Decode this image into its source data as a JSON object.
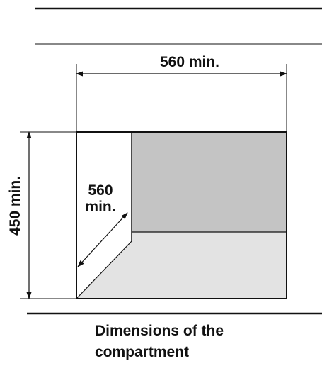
{
  "diagram": {
    "width_label": "560 min.",
    "height_label": "450 min.",
    "depth_label_line1": "560",
    "depth_label_line2": "min."
  },
  "caption": {
    "line1": "Dimensions of the",
    "line2": "compartment"
  },
  "colors": {
    "line": "#111111",
    "back_panel": "#c4c4c4",
    "floor": "#e3e3e3",
    "background": "#ffffff"
  }
}
